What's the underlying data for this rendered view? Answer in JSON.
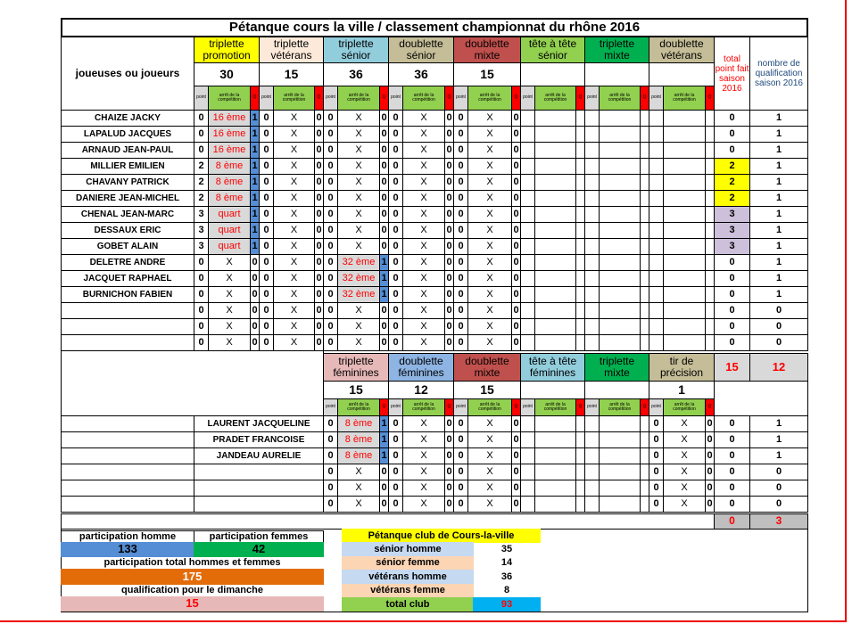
{
  "title": "Pétanque cours la ville / classement championnat du rhône 2016",
  "players_label": "joueuses ou joueurs",
  "colors": {
    "point": "#d9d9d9",
    "arret": "#92d050",
    "q": "#ff0000",
    "q_on": "#558ed5",
    "arret_on": "#d9d9d9",
    "total_2": "#ffff00",
    "total_3": "#ccc0da"
  },
  "sub_labels": {
    "point": "point",
    "arret": "arrêt de la compétition",
    "q": "Q"
  },
  "men": {
    "events": [
      {
        "label": "triplette promotion",
        "count": "30",
        "color": "#ffff00"
      },
      {
        "label": "triplette vétérans",
        "count": "15",
        "color": "#fde9d9"
      },
      {
        "label": "triplette sénior",
        "count": "36",
        "color": "#92cddc"
      },
      {
        "label": "doublette sénior",
        "count": "36",
        "color": "#c4bd97"
      },
      {
        "label": "doublette mixte",
        "count": "15",
        "color": "#c0504d"
      },
      {
        "label": "tête à tête sénior",
        "count": "",
        "color": "#92d050"
      },
      {
        "label": "triplette mixte",
        "count": "",
        "color": "#00b050"
      },
      {
        "label": "doublette vétérans",
        "count": "",
        "color": "#c4bd97"
      }
    ],
    "total_label": "total point fait saison 2016",
    "qual_label": "nombre de qualification saison 2016",
    "rows": [
      {
        "name": "CHAIZE JACKY",
        "cells": [
          [
            "0",
            "16 ème",
            "1"
          ],
          [
            "0",
            "X",
            "0"
          ],
          [
            "0",
            "X",
            "0"
          ],
          [
            "0",
            "X",
            "0"
          ],
          [
            "0",
            "X",
            "0"
          ]
        ],
        "total": "0",
        "qual": "1"
      },
      {
        "name": "LAPALUD JACQUES",
        "cells": [
          [
            "0",
            "16 ème",
            "1"
          ],
          [
            "0",
            "X",
            "0"
          ],
          [
            "0",
            "X",
            "0"
          ],
          [
            "0",
            "X",
            "0"
          ],
          [
            "0",
            "X",
            "0"
          ]
        ],
        "total": "0",
        "qual": "1"
      },
      {
        "name": "ARNAUD JEAN-PAUL",
        "cells": [
          [
            "0",
            "16 ème",
            "1"
          ],
          [
            "0",
            "X",
            "0"
          ],
          [
            "0",
            "X",
            "0"
          ],
          [
            "0",
            "X",
            "0"
          ],
          [
            "0",
            "X",
            "0"
          ]
        ],
        "total": "0",
        "qual": "1"
      },
      {
        "name": "MILLIER EMILIEN",
        "cells": [
          [
            "2",
            "8 ème",
            "1"
          ],
          [
            "0",
            "X",
            "0"
          ],
          [
            "0",
            "X",
            "0"
          ],
          [
            "0",
            "X",
            "0"
          ],
          [
            "0",
            "X",
            "0"
          ]
        ],
        "total": "2",
        "qual": "1"
      },
      {
        "name": "CHAVANY PATRICK",
        "cells": [
          [
            "2",
            "8 ème",
            "1"
          ],
          [
            "0",
            "X",
            "0"
          ],
          [
            "0",
            "X",
            "0"
          ],
          [
            "0",
            "X",
            "0"
          ],
          [
            "0",
            "X",
            "0"
          ]
        ],
        "total": "2",
        "qual": "1"
      },
      {
        "name": "DANIERE JEAN-MICHEL",
        "cells": [
          [
            "2",
            "8 ème",
            "1"
          ],
          [
            "0",
            "X",
            "0"
          ],
          [
            "0",
            "X",
            "0"
          ],
          [
            "0",
            "X",
            "0"
          ],
          [
            "0",
            "X",
            "0"
          ]
        ],
        "total": "2",
        "qual": "1"
      },
      {
        "name": "CHENAL JEAN-MARC",
        "cells": [
          [
            "3",
            "quart",
            "1"
          ],
          [
            "0",
            "X",
            "0"
          ],
          [
            "0",
            "X",
            "0"
          ],
          [
            "0",
            "X",
            "0"
          ],
          [
            "0",
            "X",
            "0"
          ]
        ],
        "total": "3",
        "qual": "1"
      },
      {
        "name": "DESSAUX ERIC",
        "cells": [
          [
            "3",
            "quart",
            "1"
          ],
          [
            "0",
            "X",
            "0"
          ],
          [
            "0",
            "X",
            "0"
          ],
          [
            "0",
            "X",
            "0"
          ],
          [
            "0",
            "X",
            "0"
          ]
        ],
        "total": "3",
        "qual": "1"
      },
      {
        "name": "GOBET ALAIN",
        "cells": [
          [
            "3",
            "quart",
            "1"
          ],
          [
            "0",
            "X",
            "0"
          ],
          [
            "0",
            "X",
            "0"
          ],
          [
            "0",
            "X",
            "0"
          ],
          [
            "0",
            "X",
            "0"
          ]
        ],
        "total": "3",
        "qual": "1"
      },
      {
        "name": "DELETRE ANDRE",
        "cells": [
          [
            "0",
            "X",
            "0"
          ],
          [
            "0",
            "X",
            "0"
          ],
          [
            "0",
            "32 ème",
            "1"
          ],
          [
            "0",
            "X",
            "0"
          ],
          [
            "0",
            "X",
            "0"
          ]
        ],
        "total": "0",
        "qual": "1"
      },
      {
        "name": "JACQUET RAPHAEL",
        "cells": [
          [
            "0",
            "X",
            "0"
          ],
          [
            "0",
            "X",
            "0"
          ],
          [
            "0",
            "32 ème",
            "1"
          ],
          [
            "0",
            "X",
            "0"
          ],
          [
            "0",
            "X",
            "0"
          ]
        ],
        "total": "0",
        "qual": "1"
      },
      {
        "name": "BURNICHON FABIEN",
        "cells": [
          [
            "0",
            "X",
            "0"
          ],
          [
            "0",
            "X",
            "0"
          ],
          [
            "0",
            "32 ème",
            "1"
          ],
          [
            "0",
            "X",
            "0"
          ],
          [
            "0",
            "X",
            "0"
          ]
        ],
        "total": "0",
        "qual": "1"
      },
      {
        "name": "",
        "cells": [
          [
            "0",
            "X",
            "0"
          ],
          [
            "0",
            "X",
            "0"
          ],
          [
            "0",
            "X",
            "0"
          ],
          [
            "0",
            "X",
            "0"
          ],
          [
            "0",
            "X",
            "0"
          ]
        ],
        "total": "0",
        "qual": "0"
      },
      {
        "name": "",
        "cells": [
          [
            "0",
            "X",
            "0"
          ],
          [
            "0",
            "X",
            "0"
          ],
          [
            "0",
            "X",
            "0"
          ],
          [
            "0",
            "X",
            "0"
          ],
          [
            "0",
            "X",
            "0"
          ]
        ],
        "total": "0",
        "qual": "0"
      },
      {
        "name": "",
        "cells": [
          [
            "0",
            "X",
            "0"
          ],
          [
            "0",
            "X",
            "0"
          ],
          [
            "0",
            "X",
            "0"
          ],
          [
            "0",
            "X",
            "0"
          ],
          [
            "0",
            "X",
            "0"
          ]
        ],
        "total": "0",
        "qual": "0"
      }
    ],
    "sum_total": "15",
    "sum_qual": "12"
  },
  "women": {
    "events": [
      {
        "label": "triplette féminines",
        "count": "15",
        "color": "#e6b8b7"
      },
      {
        "label": "doublette féminines",
        "count": "12",
        "color": "#8db4e2"
      },
      {
        "label": "doublette mixte",
        "count": "15",
        "color": "#c0504d"
      },
      {
        "label": "tête à tête féminines",
        "count": "",
        "color": "#92cddc"
      },
      {
        "label": "triplette mixte",
        "count": "",
        "color": "#00b050"
      },
      {
        "label": "tir de précision",
        "count": "1",
        "color": "#c4bd97"
      }
    ],
    "rows": [
      {
        "name": "LAURENT JACQUELINE",
        "cells": [
          [
            "0",
            "8 ème",
            "1"
          ],
          [
            "0",
            "X",
            "0"
          ],
          [
            "0",
            "X",
            "0"
          ],
          null,
          null,
          [
            "0",
            "X",
            "0"
          ]
        ],
        "total": "0",
        "qual": "1"
      },
      {
        "name": "PRADET FRANCOISE",
        "cells": [
          [
            "0",
            "8 ème",
            "1"
          ],
          [
            "0",
            "X",
            "0"
          ],
          [
            "0",
            "X",
            "0"
          ],
          null,
          null,
          [
            "0",
            "X",
            "0"
          ]
        ],
        "total": "0",
        "qual": "1"
      },
      {
        "name": "JANDEAU AURELIE",
        "cells": [
          [
            "0",
            "8 ème",
            "1"
          ],
          [
            "0",
            "X",
            "0"
          ],
          [
            "0",
            "X",
            "0"
          ],
          null,
          null,
          [
            "0",
            "X",
            "0"
          ]
        ],
        "total": "0",
        "qual": "1"
      },
      {
        "name": "",
        "cells": [
          [
            "0",
            "X",
            "0"
          ],
          [
            "0",
            "X",
            "0"
          ],
          [
            "0",
            "X",
            "0"
          ],
          null,
          null,
          [
            "0",
            "X",
            "0"
          ]
        ],
        "total": "0",
        "qual": "0"
      },
      {
        "name": "",
        "cells": [
          [
            "0",
            "X",
            "0"
          ],
          [
            "0",
            "X",
            "0"
          ],
          [
            "0",
            "X",
            "0"
          ],
          null,
          null,
          [
            "0",
            "X",
            "0"
          ]
        ],
        "total": "0",
        "qual": "0"
      },
      {
        "name": "",
        "cells": [
          [
            "0",
            "X",
            "0"
          ],
          [
            "0",
            "X",
            "0"
          ],
          [
            "0",
            "X",
            "0"
          ],
          null,
          null,
          [
            "0",
            "X",
            "0"
          ]
        ],
        "total": "0",
        "qual": "0"
      }
    ],
    "sum_total": "0",
    "sum_qual": "3"
  },
  "summary": {
    "men_label": "participation homme",
    "men_value": "133",
    "men_color": "#558ed5",
    "women_label": "participation femmes",
    "women_value": "42",
    "women_color": "#00b050",
    "total_label": "participation total hommes et femmes",
    "total_value": "175",
    "total_color": "#e36c09",
    "qual_label": "qualification pour le dimanche",
    "qual_value": "15",
    "qual_color": "#e6b8b7"
  },
  "club": {
    "title": "Pétanque club de Cours-la-ville",
    "rows": [
      {
        "label": "sénior homme",
        "value": "35",
        "color": "#c5d9f1"
      },
      {
        "label": "sénior femme",
        "value": "14",
        "color": "#fcd5b4"
      },
      {
        "label": "vétérans homme",
        "value": "36",
        "color": "#c5d9f1"
      },
      {
        "label": "vétérans femme",
        "value": "8",
        "color": "#fcd5b4"
      },
      {
        "label": "total club",
        "value": "93",
        "color": "#92d050"
      }
    ]
  }
}
